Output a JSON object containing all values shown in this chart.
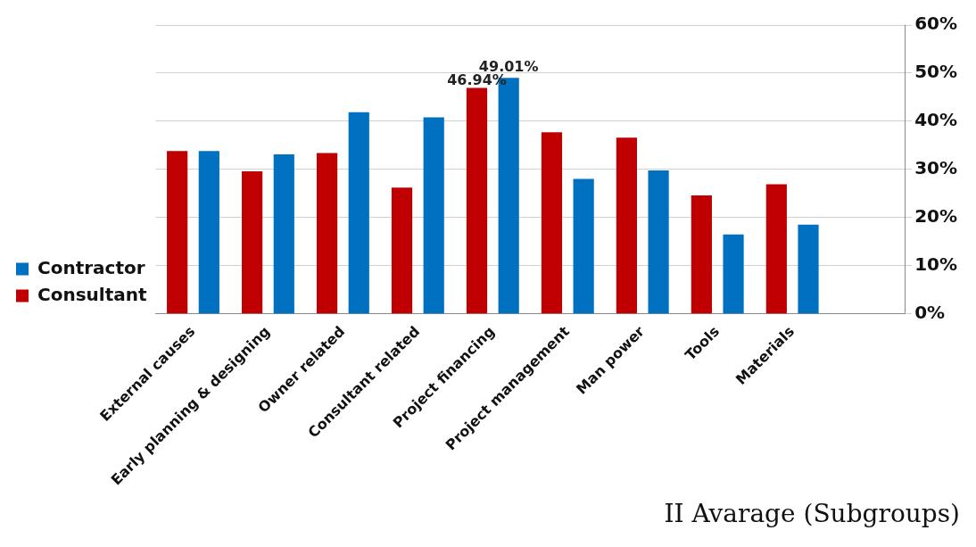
{
  "chart_data": {
    "type": "bar",
    "title": "II Avarage (Subgroups)",
    "categories": [
      "External causes",
      "Early planning & designing",
      "Owner related",
      "Consultant related",
      "Project financing",
      "Project management",
      "Man power",
      "Tools",
      "Materials",
      null
    ],
    "series": [
      {
        "name": "Consultant",
        "color": "#c00000",
        "values": [
          33.8,
          29.6,
          33.4,
          26.2,
          46.94,
          37.7,
          36.6,
          24.6,
          26.9,
          null
        ],
        "value_labels": [
          null,
          null,
          null,
          null,
          "46.94%",
          null,
          null,
          null,
          null,
          null
        ]
      },
      {
        "name": "Contractor",
        "color": "#0070c0",
        "values": [
          33.8,
          33.1,
          41.9,
          40.8,
          49.01,
          28.0,
          29.8,
          16.5,
          18.5,
          null
        ],
        "value_labels": [
          null,
          null,
          null,
          null,
          "49.01%",
          null,
          null,
          null,
          null,
          null
        ]
      }
    ],
    "ylim": [
      0,
      60
    ],
    "yticks": [
      {
        "value": 0,
        "label": "0%"
      },
      {
        "value": 10,
        "label": "10%"
      },
      {
        "value": 20,
        "label": "20%"
      },
      {
        "value": 30,
        "label": "30%"
      },
      {
        "value": 40,
        "label": "40%"
      },
      {
        "value": 50,
        "label": "50%"
      },
      {
        "value": 60,
        "label": "60%"
      }
    ],
    "grid": "y",
    "legend": "left"
  }
}
